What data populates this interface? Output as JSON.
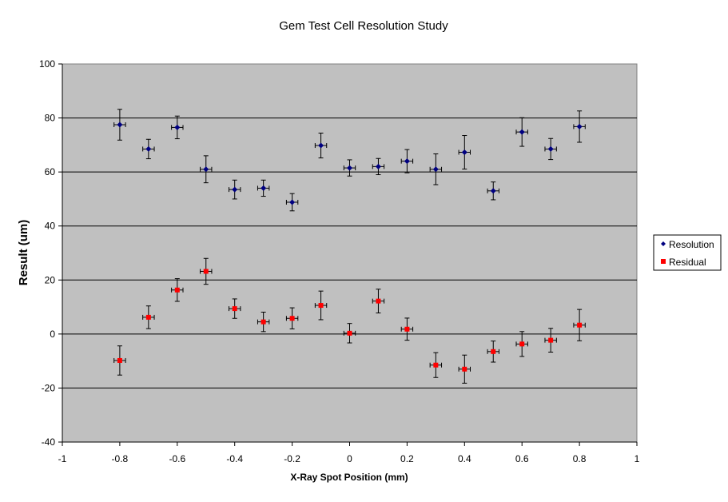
{
  "chart_data": {
    "type": "scatter",
    "title": "Gem Test Cell Resolution Study",
    "xlabel": "X-Ray Spot Position (mm)",
    "ylabel": "Result (um)",
    "xlim": [
      -1,
      1
    ],
    "ylim": [
      -40,
      100
    ],
    "x_ticks": [
      "-1",
      "-0.8",
      "-0.6",
      "-0.4",
      "-0.2",
      "0",
      "0.2",
      "0.4",
      "0.6",
      "0.8",
      "1"
    ],
    "y_ticks": [
      "100",
      "80",
      "60",
      "40",
      "20",
      "0",
      "-20",
      "-40"
    ],
    "grid": true,
    "legend_position": "right",
    "plot_background": "#c0c0c0",
    "series": [
      {
        "name": "Resolution",
        "marker": "diamond",
        "color": "#000080",
        "x": [
          -0.8,
          -0.7,
          -0.6,
          -0.5,
          -0.4,
          -0.3,
          -0.2,
          -0.1,
          0.0,
          0.1,
          0.2,
          0.3,
          0.4,
          0.5,
          0.6,
          0.7,
          0.8
        ],
        "y": [
          77.5,
          68.5,
          76.5,
          61,
          53.5,
          54,
          48.8,
          69.8,
          61.5,
          62,
          64,
          61,
          67.3,
          53,
          74.8,
          68.5,
          76.8
        ],
        "y_err": [
          5.7,
          3.6,
          4.2,
          5,
          3.5,
          3,
          3.2,
          4.6,
          3,
          3,
          4.3,
          5.7,
          6.2,
          3.3,
          5.3,
          3.9,
          5.8
        ]
      },
      {
        "name": "Residual",
        "marker": "square",
        "color": "#ff0000",
        "x": [
          -0.8,
          -0.7,
          -0.6,
          -0.5,
          -0.4,
          -0.3,
          -0.2,
          -0.1,
          0.0,
          0.1,
          0.2,
          0.3,
          0.4,
          0.5,
          0.6,
          0.7,
          0.8
        ],
        "y": [
          -9.8,
          6.2,
          16.3,
          23.2,
          9.4,
          4.5,
          5.8,
          10.6,
          0.3,
          12.2,
          1.8,
          -11.5,
          -13,
          -6.5,
          -3.7,
          -2.3,
          3.3
        ],
        "y_err": [
          5.4,
          4.2,
          4.2,
          4.8,
          3.6,
          3.6,
          3.9,
          5.3,
          3.6,
          4.4,
          4.1,
          4.6,
          5.2,
          3.9,
          4.6,
          4.4,
          5.8
        ]
      }
    ],
    "x_err": 0.02
  }
}
